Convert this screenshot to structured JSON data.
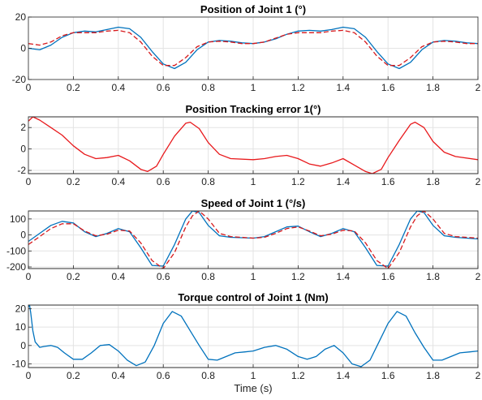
{
  "chart_data": [
    {
      "type": "line",
      "title": "Position of Joint 1 (°)",
      "xlabel": "",
      "xlim": [
        0,
        2
      ],
      "ylim": [
        -20,
        20
      ],
      "xticks": [
        0,
        0.2,
        0.4,
        0.6,
        0.8,
        1,
        1.2,
        1.4,
        1.6,
        1.8,
        2
      ],
      "xticklabels": [
        "0",
        "0.2",
        "0.4",
        "0.6",
        "0.8",
        "1",
        "1.2",
        "1.4",
        "1.6",
        "1.8",
        "2"
      ],
      "yticks": [
        -20,
        0,
        20
      ],
      "yticklabels": [
        "-20",
        "0",
        "20"
      ],
      "grid": true,
      "series": [
        {
          "color": "#0072bd",
          "style": "solid",
          "x": [
            0,
            0.05,
            0.1,
            0.15,
            0.2,
            0.25,
            0.3,
            0.35,
            0.4,
            0.45,
            0.5,
            0.55,
            0.6,
            0.65,
            0.7,
            0.75,
            0.8,
            0.85,
            0.9,
            0.95,
            1,
            1.05,
            1.1,
            1.15,
            1.2,
            1.25,
            1.3,
            1.35,
            1.4,
            1.45,
            1.5,
            1.55,
            1.6,
            1.65,
            1.7,
            1.75,
            1.8,
            1.85,
            1.9,
            1.95,
            2
          ],
          "y": [
            0,
            -1,
            2,
            7,
            10,
            11,
            10.5,
            12,
            13.5,
            12.5,
            7,
            -2,
            -10,
            -13,
            -9,
            -1,
            4,
            5,
            4.5,
            3.5,
            3,
            4,
            6,
            9,
            11,
            11.5,
            11,
            12,
            13.5,
            12.5,
            7,
            -2,
            -10,
            -13,
            -9,
            -1,
            4,
            5,
            4.5,
            3.5,
            3
          ]
        },
        {
          "color": "#d7191c",
          "style": "dashed",
          "x": [
            0,
            0.05,
            0.1,
            0.15,
            0.2,
            0.25,
            0.3,
            0.35,
            0.4,
            0.45,
            0.5,
            0.55,
            0.6,
            0.65,
            0.7,
            0.75,
            0.8,
            0.85,
            0.9,
            0.95,
            1,
            1.05,
            1.1,
            1.15,
            1.2,
            1.25,
            1.3,
            1.35,
            1.4,
            1.45,
            1.5,
            1.55,
            1.6,
            1.65,
            1.7,
            1.75,
            1.8,
            1.85,
            1.9,
            1.95,
            2
          ],
          "y": [
            3,
            2,
            4,
            8,
            10,
            10,
            10,
            11,
            11.5,
            10,
            4,
            -5,
            -11,
            -11,
            -6,
            1,
            4,
            4.5,
            4,
            3,
            3,
            4,
            6.5,
            9,
            10,
            10,
            10,
            11,
            11.5,
            10,
            4,
            -5,
            -11,
            -11,
            -6,
            1,
            4,
            4.5,
            4,
            3,
            3
          ]
        }
      ]
    },
    {
      "type": "line",
      "title": "Position Tracking error 1(°)",
      "xlabel": "",
      "xlim": [
        0,
        2
      ],
      "ylim": [
        -2.3,
        3
      ],
      "xticks": [
        0,
        0.2,
        0.4,
        0.6,
        0.8,
        1,
        1.2,
        1.4,
        1.6,
        1.8,
        2
      ],
      "xticklabels": [
        "0",
        "0.2",
        "0.4",
        "0.6",
        "0.8",
        "1",
        "1.2",
        "1.4",
        "1.6",
        "1.8",
        "2"
      ],
      "yticks": [
        -2,
        0,
        2
      ],
      "yticklabels": [
        "-2",
        "0",
        "2"
      ],
      "grid": true,
      "series": [
        {
          "color": "#e8191c",
          "style": "solid",
          "x": [
            0,
            0.02,
            0.05,
            0.1,
            0.15,
            0.2,
            0.25,
            0.3,
            0.35,
            0.4,
            0.45,
            0.5,
            0.53,
            0.57,
            0.6,
            0.65,
            0.7,
            0.72,
            0.76,
            0.8,
            0.85,
            0.9,
            1,
            1.05,
            1.1,
            1.15,
            1.2,
            1.25,
            1.3,
            1.35,
            1.4,
            1.45,
            1.5,
            1.53,
            1.57,
            1.6,
            1.65,
            1.7,
            1.72,
            1.76,
            1.8,
            1.85,
            1.9,
            2
          ],
          "y": [
            2.6,
            3,
            2.7,
            2,
            1.3,
            0.3,
            -0.5,
            -0.9,
            -0.8,
            -0.6,
            -1.1,
            -1.9,
            -2.1,
            -1.6,
            -0.5,
            1.2,
            2.4,
            2.5,
            1.9,
            0.6,
            -0.5,
            -0.9,
            -1,
            -0.9,
            -0.7,
            -0.6,
            -0.9,
            -1.4,
            -1.6,
            -1.3,
            -0.9,
            -1.5,
            -2.1,
            -2.3,
            -1.9,
            -0.8,
            0.8,
            2.3,
            2.5,
            2,
            0.7,
            -0.3,
            -0.7,
            -1
          ]
        }
      ]
    },
    {
      "type": "line",
      "title": "Speed of Joint 1 (°/s)",
      "xlabel": "",
      "xlim": [
        0,
        2
      ],
      "ylim": [
        -210,
        150
      ],
      "xticks": [
        0,
        0.2,
        0.4,
        0.6,
        0.8,
        1,
        1.2,
        1.4,
        1.6,
        1.8,
        2
      ],
      "xticklabels": [
        "0",
        "0.2",
        "0.4",
        "0.6",
        "0.8",
        "1",
        "1.2",
        "1.4",
        "1.6",
        "1.8",
        "2"
      ],
      "yticks": [
        -200,
        -100,
        0,
        100
      ],
      "yticklabels": [
        "-200",
        "-100",
        "0",
        "100"
      ],
      "grid": true,
      "series": [
        {
          "color": "#0072bd",
          "style": "solid",
          "x": [
            0,
            0.05,
            0.1,
            0.15,
            0.2,
            0.25,
            0.3,
            0.35,
            0.4,
            0.45,
            0.5,
            0.55,
            0.6,
            0.65,
            0.7,
            0.73,
            0.76,
            0.8,
            0.85,
            0.9,
            1,
            1.05,
            1.1,
            1.15,
            1.2,
            1.25,
            1.3,
            1.35,
            1.4,
            1.45,
            1.5,
            1.55,
            1.6,
            1.65,
            1.7,
            1.73,
            1.76,
            1.8,
            1.85,
            1.9,
            2
          ],
          "y": [
            -40,
            10,
            60,
            85,
            75,
            20,
            -10,
            10,
            40,
            20,
            -80,
            -190,
            -195,
            -60,
            100,
            150,
            140,
            60,
            -5,
            -15,
            -20,
            -10,
            20,
            50,
            55,
            20,
            -10,
            10,
            40,
            20,
            -80,
            -190,
            -195,
            -60,
            100,
            150,
            140,
            60,
            -5,
            -15,
            -25
          ]
        },
        {
          "color": "#d7191c",
          "style": "dashed",
          "x": [
            0,
            0.05,
            0.1,
            0.15,
            0.2,
            0.25,
            0.3,
            0.35,
            0.4,
            0.45,
            0.5,
            0.55,
            0.6,
            0.65,
            0.7,
            0.73,
            0.76,
            0.8,
            0.85,
            0.9,
            1,
            1.05,
            1.1,
            1.15,
            1.2,
            1.25,
            1.3,
            1.35,
            1.4,
            1.45,
            1.5,
            1.55,
            1.6,
            1.65,
            1.7,
            1.73,
            1.76,
            1.8,
            1.85,
            1.9,
            2
          ],
          "y": [
            -60,
            -10,
            40,
            70,
            70,
            25,
            -5,
            5,
            30,
            25,
            -50,
            -160,
            -210,
            -110,
            50,
            120,
            150,
            100,
            10,
            -10,
            -20,
            -15,
            10,
            40,
            50,
            25,
            -5,
            5,
            30,
            25,
            -50,
            -160,
            -210,
            -110,
            50,
            120,
            150,
            100,
            10,
            -10,
            -20
          ]
        }
      ]
    },
    {
      "type": "line",
      "title": "Torque control of Joint 1 (Nm)",
      "xlabel": "Time (s)",
      "xlim": [
        0,
        2
      ],
      "ylim": [
        -12,
        22
      ],
      "xticks": [
        0,
        0.2,
        0.4,
        0.6,
        0.8,
        1,
        1.2,
        1.4,
        1.6,
        1.8,
        2
      ],
      "xticklabels": [
        "0",
        "0.2",
        "0.4",
        "0.6",
        "0.8",
        "1",
        "1.2",
        "1.4",
        "1.6",
        "1.8",
        "2"
      ],
      "yticks": [
        -10,
        0,
        10,
        20
      ],
      "yticklabels": [
        "-10",
        "0",
        "10",
        "20"
      ],
      "grid": true,
      "series": [
        {
          "color": "#0072bd",
          "style": "solid",
          "x": [
            0,
            0.005,
            0.01,
            0.02,
            0.03,
            0.05,
            0.07,
            0.1,
            0.13,
            0.16,
            0.2,
            0.24,
            0.28,
            0.32,
            0.36,
            0.4,
            0.44,
            0.48,
            0.52,
            0.56,
            0.6,
            0.64,
            0.68,
            0.72,
            0.76,
            0.8,
            0.84,
            0.88,
            0.92,
            0.96,
            1,
            1.05,
            1.1,
            1.15,
            1.2,
            1.24,
            1.28,
            1.32,
            1.36,
            1.4,
            1.44,
            1.48,
            1.52,
            1.56,
            1.6,
            1.64,
            1.68,
            1.72,
            1.76,
            1.8,
            1.84,
            1.88,
            1.92,
            1.96,
            2
          ],
          "y": [
            21,
            22,
            18,
            8,
            2,
            -1,
            -0.5,
            0,
            -1,
            -4,
            -7.5,
            -7.5,
            -4,
            0,
            0.5,
            -3,
            -8,
            -11,
            -9,
            0,
            12,
            18.5,
            16,
            8,
            0,
            -7.5,
            -8,
            -6,
            -4,
            -3.5,
            -3,
            -1,
            0,
            -2,
            -6,
            -7.5,
            -6,
            -2,
            0,
            -4,
            -10,
            -11.5,
            -8,
            2,
            12,
            18.5,
            16,
            7,
            -1,
            -8,
            -8,
            -6,
            -4,
            -3.5,
            -3
          ]
        }
      ]
    }
  ]
}
